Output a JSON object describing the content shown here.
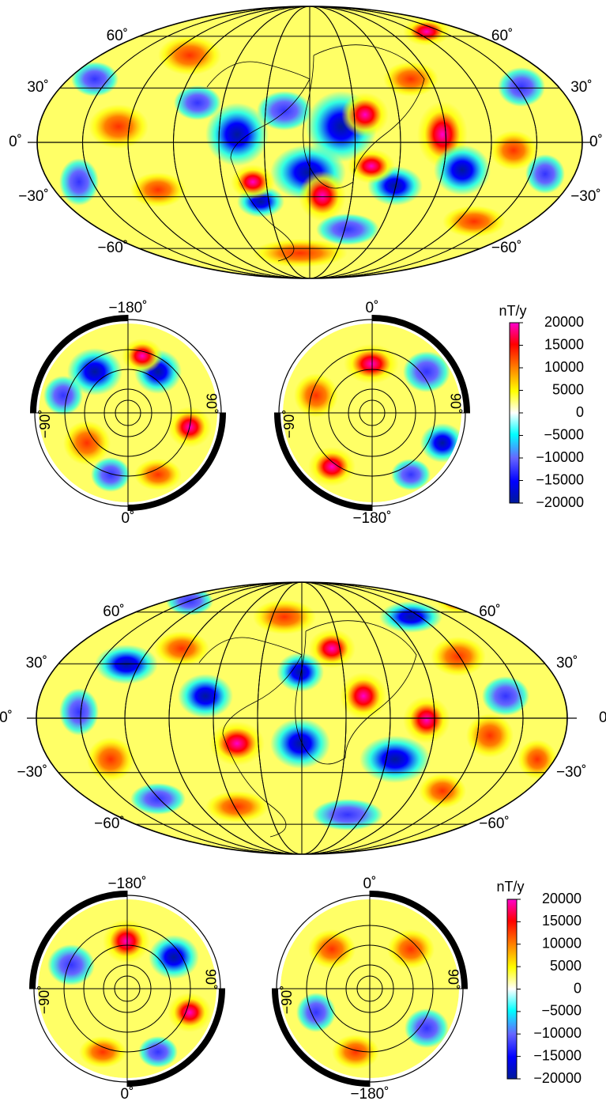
{
  "panels": [
    {
      "moll_lat_labels": {
        "n60": "60˚",
        "n30": "30˚",
        "eq": "0˚",
        "s30": "−30˚",
        "s60": "−60˚"
      },
      "north_polar": {
        "top": "−180˚",
        "right": "90˚",
        "left": "−90˚",
        "bottom": "0˚"
      },
      "south_polar": {
        "top": "0˚",
        "right": "90˚",
        "left": "−90˚",
        "bottom": "−180˚"
      },
      "colorbar": {
        "unit": "nT/y",
        "ticks": [
          "20000",
          "15000",
          "10000",
          "5000",
          "0",
          "−5000",
          "−10000",
          "−15000",
          "−20000"
        ]
      }
    },
    {
      "moll_lat_labels": {
        "n60": "60˚",
        "n30": "30˚",
        "eq": "0˚",
        "s30": "−30˚",
        "s60": "−60˚"
      },
      "north_polar": {
        "top": "−180˚",
        "right": "90˚",
        "left": "−90˚",
        "bottom": "0˚"
      },
      "south_polar": {
        "top": "0˚",
        "right": "90˚",
        "left": "−90˚",
        "bottom": "−180˚"
      },
      "colorbar": {
        "unit": "nT/y",
        "ticks": [
          "20000",
          "15000",
          "10000",
          "5000",
          "0",
          "−5000",
          "−10000",
          "−15000",
          "−20000"
        ]
      }
    }
  ],
  "colors": {
    "scale": [
      "#001a99",
      "#0000ff",
      "#6666ff",
      "#00ffff",
      "#ffffff",
      "#ffff00",
      "#ff8000",
      "#ff0000",
      "#ff00cc"
    ],
    "coastline": "#000000",
    "graticule": "#000000"
  }
}
